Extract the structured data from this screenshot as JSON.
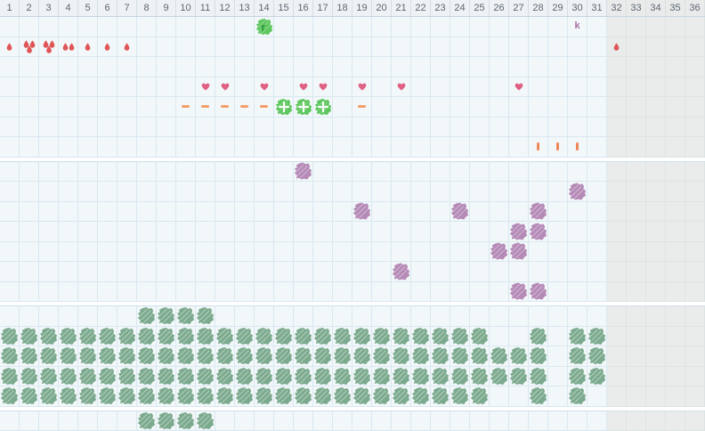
{
  "grid": {
    "columns": 36,
    "gray_from_column": 32
  },
  "header": {
    "days": [
      "1",
      "2",
      "3",
      "4",
      "5",
      "6",
      "7",
      "8",
      "9",
      "10",
      "11",
      "12",
      "13",
      "14",
      "15",
      "16",
      "17",
      "18",
      "19",
      "20",
      "21",
      "22",
      "23",
      "24",
      "25",
      "26",
      "27",
      "28",
      "29",
      "30",
      "31",
      "32",
      "33",
      "34",
      "35",
      "36"
    ]
  },
  "colors": {
    "drop": "#e05555",
    "heart": "#df6183",
    "dash": "#f49e68",
    "bar": "#ee8757",
    "bright_green": "#5ec75e",
    "bright_green_dark": "#2b8f3a",
    "purple": "#b58ab7",
    "sage": "#7caa8e",
    "letter_purple": "#aa6fa5",
    "cell_bg": "#f2f7f9",
    "gray_bg": "#eaecec",
    "grid_line": "#d9e8f1",
    "header_bg": "#eef2f4",
    "header_text": "#5d6771"
  },
  "icon_names": {
    "drops-1": "blood-drop-icon",
    "drops-2": "blood-drops-2-icon",
    "drops-3": "blood-drops-3-icon",
    "heart": "heart-icon",
    "dash": "dash-icon",
    "orange-bar": "vertical-bar-icon",
    "letter-k": "letter-k-marker",
    "blob-green-letter": "green-scribble-letter-icon",
    "blob-green-plus": "green-scribble-plus-icon",
    "blob-purple": "purple-scribble-blob-icon",
    "blob-sage": "green-scribble-blob-icon"
  },
  "bands": [
    {
      "name": "band-top-symptoms",
      "rows": [
        {
          "marks": [
            {
              "icon": "blob-green-letter",
              "label": "r",
              "cols": [
                14
              ]
            },
            {
              "icon": "letter-k",
              "label": "k",
              "cols": [
                30
              ]
            }
          ]
        },
        {
          "marks": [
            {
              "icon": "drops-1",
              "cols": [
                1,
                5,
                6,
                7,
                32
              ]
            },
            {
              "icon": "drops-3",
              "cols": [
                2,
                3
              ]
            },
            {
              "icon": "drops-2",
              "cols": [
                4
              ]
            }
          ]
        },
        {
          "marks": []
        },
        {
          "marks": [
            {
              "icon": "heart",
              "cols": [
                11,
                12,
                14,
                16,
                17,
                19,
                21,
                27
              ]
            }
          ]
        },
        {
          "marks": [
            {
              "icon": "dash",
              "cols": [
                10,
                11,
                12,
                13,
                14,
                19
              ]
            },
            {
              "icon": "blob-green-plus",
              "cols": [
                15,
                16,
                17
              ]
            }
          ]
        },
        {
          "marks": []
        },
        {
          "marks": [
            {
              "icon": "orange-bar",
              "cols": [
                28,
                29,
                30
              ]
            }
          ]
        }
      ]
    },
    {
      "name": "band-purple-marks",
      "rows": [
        {
          "marks": [
            {
              "icon": "blob-purple",
              "cols": [
                16
              ]
            }
          ]
        },
        {
          "marks": [
            {
              "icon": "blob-purple",
              "cols": [
                30
              ]
            }
          ]
        },
        {
          "marks": [
            {
              "icon": "blob-purple",
              "cols": [
                19,
                24,
                28
              ]
            }
          ]
        },
        {
          "marks": [
            {
              "icon": "blob-purple",
              "cols": [
                27,
                28
              ]
            }
          ]
        },
        {
          "marks": [
            {
              "icon": "blob-purple",
              "cols": [
                26,
                27
              ]
            }
          ]
        },
        {
          "marks": [
            {
              "icon": "blob-purple",
              "cols": [
                21
              ]
            }
          ]
        },
        {
          "marks": [
            {
              "icon": "blob-purple",
              "cols": [
                27,
                28
              ]
            }
          ]
        }
      ]
    },
    {
      "name": "band-green-fill",
      "rows": [
        {
          "marks": [
            {
              "icon": "blob-sage",
              "cols": [
                8,
                9,
                10,
                11
              ]
            }
          ]
        },
        {
          "marks": [
            {
              "icon": "blob-sage",
              "cols": [
                1,
                2,
                3,
                4,
                5,
                6,
                7,
                8,
                9,
                10,
                11,
                12,
                13,
                14,
                15,
                16,
                17,
                18,
                19,
                20,
                21,
                22,
                23,
                24,
                25,
                28,
                30,
                31
              ]
            }
          ]
        },
        {
          "marks": [
            {
              "icon": "blob-sage",
              "cols": [
                1,
                2,
                3,
                4,
                5,
                6,
                7,
                8,
                9,
                10,
                11,
                12,
                13,
                14,
                15,
                16,
                17,
                18,
                19,
                20,
                21,
                22,
                23,
                24,
                25,
                26,
                27,
                28,
                30,
                31
              ]
            }
          ]
        },
        {
          "marks": [
            {
              "icon": "blob-sage",
              "cols": [
                1,
                2,
                3,
                4,
                5,
                6,
                7,
                8,
                9,
                10,
                11,
                12,
                13,
                14,
                15,
                16,
                17,
                18,
                19,
                20,
                21,
                22,
                23,
                24,
                25,
                26,
                27,
                28,
                30,
                31
              ]
            }
          ]
        },
        {
          "marks": [
            {
              "icon": "blob-sage",
              "cols": [
                1,
                2,
                3,
                4,
                5,
                6,
                7,
                8,
                9,
                10,
                11,
                12,
                13,
                14,
                15,
                16,
                17,
                18,
                19,
                20,
                21,
                22,
                23,
                24,
                25,
                28,
                30
              ]
            }
          ]
        }
      ]
    },
    {
      "name": "band-bottom",
      "rows": [
        {
          "marks": [
            {
              "icon": "blob-sage",
              "cols": [
                8,
                9,
                10,
                11
              ]
            }
          ]
        }
      ]
    }
  ]
}
